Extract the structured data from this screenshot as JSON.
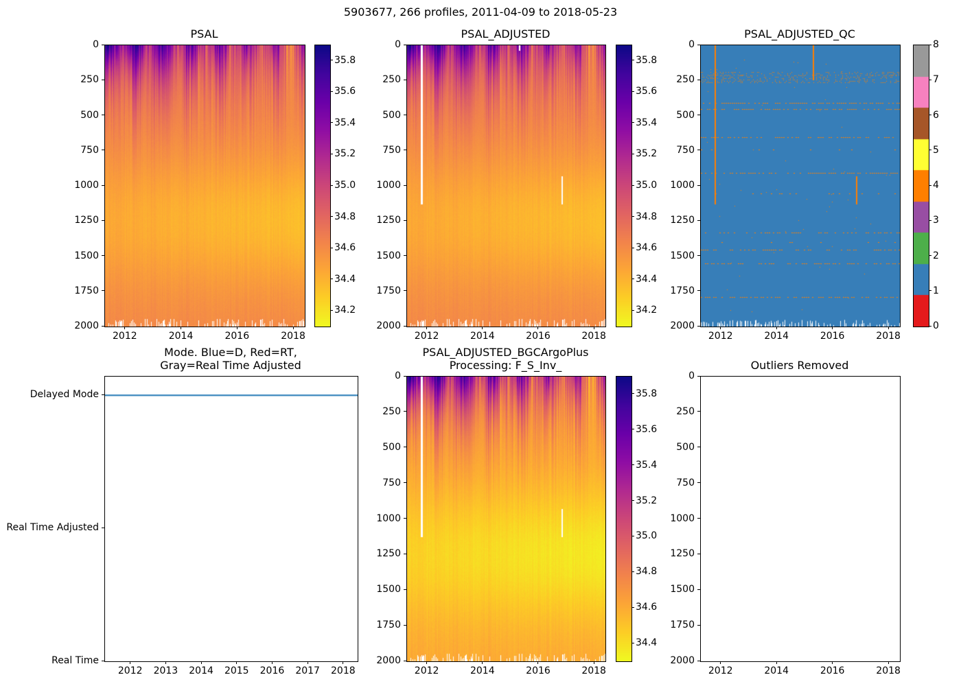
{
  "figure": {
    "title": "5903677, 266 profiles, 2011-04-09 to 2018-05-23",
    "background": "#ffffff"
  },
  "colormaps": {
    "plasma": [
      [
        0,
        "#0d0887"
      ],
      [
        0.1,
        "#41049d"
      ],
      [
        0.2,
        "#6a00a8"
      ],
      [
        0.3,
        "#8f0da4"
      ],
      [
        0.4,
        "#b12a90"
      ],
      [
        0.5,
        "#cc4778"
      ],
      [
        0.6,
        "#e16462"
      ],
      [
        0.7,
        "#f2844b"
      ],
      [
        0.8,
        "#fca636"
      ],
      [
        0.9,
        "#fcce25"
      ],
      [
        1,
        "#f0f921"
      ]
    ],
    "qc_set1": [
      "#e41a1c",
      "#377eb8",
      "#4daf4a",
      "#984ea3",
      "#ff7f00",
      "#ffff33",
      "#a65628",
      "#f781bf",
      "#999999"
    ]
  },
  "chart_data": [
    {
      "type": "heatmap",
      "title": "PSAL",
      "x": {
        "min": 2011.27,
        "max": 2018.39,
        "tick_values": [
          2012,
          2014,
          2016,
          2018
        ],
        "tick_labels": [
          "2012",
          "2014",
          "2016",
          "2018"
        ]
      },
      "y": {
        "min": 0,
        "max": 2000,
        "inverted": true,
        "tick_values": [
          0,
          250,
          500,
          750,
          1000,
          1250,
          1500,
          1750,
          2000
        ],
        "tick_labels": [
          "0",
          "250",
          "500",
          "750",
          "1000",
          "1250",
          "1500",
          "1750",
          "2000"
        ]
      },
      "colorbar": {
        "vmin": 34.1,
        "vmax": 35.9,
        "tick_values": [
          35.8,
          35.6,
          35.4,
          35.2,
          35.0,
          34.8,
          34.6,
          34.4,
          34.2
        ],
        "tick_labels": [
          "35.8",
          "35.6",
          "35.4",
          "35.2",
          "35.0",
          "34.8",
          "34.6",
          "34.4",
          "34.2"
        ]
      },
      "colormap": "plasma_r",
      "field": {
        "seed": 42,
        "years_span": 7.12,
        "deep_salinity": 34.62,
        "mid_depth": 1250,
        "mid_width": 480,
        "mid_amplitude_start": 0.17,
        "mid_amplitude_trend": 0.1,
        "surface_start": 35.55,
        "surface_trend": -0.6,
        "seasonal_amp": 0.26,
        "seasonal_phase": 0.15,
        "surface_noise": 0.5,
        "decay_min": 120,
        "decay_var": 280,
        "column_noise": 0.06,
        "pixel_noise": 0.035,
        "notch_prob": 0.3,
        "notch_max": 9,
        "gaps": []
      }
    },
    {
      "type": "heatmap",
      "title": "PSAL_ADJUSTED",
      "x": {
        "min": 2011.27,
        "max": 2018.39,
        "tick_values": [
          2012,
          2014,
          2016,
          2018
        ],
        "tick_labels": [
          "2012",
          "2014",
          "2016",
          "2018"
        ]
      },
      "y": {
        "min": 0,
        "max": 2000,
        "inverted": true,
        "tick_values": [
          0,
          250,
          500,
          750,
          1000,
          1250,
          1500,
          1750,
          2000
        ],
        "tick_labels": [
          "0",
          "250",
          "500",
          "750",
          "1000",
          "1250",
          "1500",
          "1750",
          "2000"
        ]
      },
      "colorbar": {
        "vmin": 34.1,
        "vmax": 35.9,
        "tick_values": [
          35.8,
          35.6,
          35.4,
          35.2,
          35.0,
          34.8,
          34.6,
          34.4,
          34.2
        ],
        "tick_labels": [
          "35.8",
          "35.6",
          "35.4",
          "35.2",
          "35.0",
          "34.8",
          "34.6",
          "34.4",
          "34.2"
        ]
      },
      "colormap": "plasma_r",
      "field": {
        "seed": 42,
        "years_span": 7.12,
        "deep_salinity": 34.62,
        "mid_depth": 1250,
        "mid_width": 480,
        "mid_amplitude_start": 0.17,
        "mid_amplitude_trend": 0.1,
        "surface_start": 35.55,
        "surface_trend": -0.6,
        "seasonal_amp": 0.26,
        "seasonal_phase": 0.15,
        "surface_noise": 0.5,
        "decay_min": 120,
        "decay_var": 280,
        "column_noise": 0.06,
        "pixel_noise": 0.035,
        "notch_prob": 0.3,
        "notch_max": 9,
        "gaps": [
          {
            "time": 2011.78,
            "depth_from": 0,
            "depth_to": 1130,
            "width": 3
          },
          {
            "time": 2015.3,
            "depth_from": 0,
            "depth_to": 40,
            "width": 2
          },
          {
            "time": 2016.85,
            "depth_from": 930,
            "depth_to": 1130,
            "width": 2
          }
        ]
      }
    },
    {
      "type": "qc_heatmap",
      "title": "PSAL_ADJUSTED_QC",
      "x": {
        "min": 2011.27,
        "max": 2018.39,
        "tick_values": [
          2012,
          2014,
          2016,
          2018
        ],
        "tick_labels": [
          "2012",
          "2014",
          "2016",
          "2018"
        ]
      },
      "y": {
        "min": 0,
        "max": 2000,
        "inverted": true,
        "tick_values": [
          0,
          250,
          500,
          750,
          1000,
          1250,
          1500,
          1750,
          2000
        ],
        "tick_labels": [
          "0",
          "250",
          "500",
          "750",
          "1000",
          "1250",
          "1500",
          "1750",
          "2000"
        ]
      },
      "colorbar": {
        "vmin": 0,
        "vmax": 8,
        "tick_values": [
          0,
          1,
          2,
          3,
          4,
          5,
          6,
          7,
          8
        ],
        "tick_labels": [
          "0",
          "1",
          "2",
          "3",
          "4",
          "5",
          "6",
          "7",
          "8"
        ],
        "discrete_colors": "qc_set1"
      },
      "features": {
        "seed": 7,
        "base_qc_value": 1,
        "flag_qc_value": 4,
        "base_color": "#377eb8",
        "flag_color": "#ff7f00",
        "speckle_band": {
          "depth_from": 190,
          "depth_to": 266,
          "row_step": 9,
          "prob": 0.3
        },
        "rows": [
          {
            "depth": 410,
            "density": 0.6
          },
          {
            "depth": 452,
            "density": 0.55
          },
          {
            "depth": 656,
            "density": 0.5
          },
          {
            "depth": 740,
            "density": 0.05
          },
          {
            "depth": 905,
            "density": 0.55
          },
          {
            "depth": 1052,
            "density": 0.12
          },
          {
            "depth": 1330,
            "density": 0.45
          },
          {
            "depth": 1400,
            "density": 0.12
          },
          {
            "depth": 1455,
            "density": 0.5
          },
          {
            "depth": 1553,
            "density": 0.4
          },
          {
            "depth": 1790,
            "density": 0.5
          }
        ],
        "v_lines": [
          {
            "time": 2011.78,
            "depth_from": 0,
            "depth_to": 1130
          },
          {
            "time": 2015.3,
            "depth_from": 0,
            "depth_to": 250
          },
          {
            "time": 2016.85,
            "depth_from": 930,
            "depth_to": 1130
          }
        ],
        "random_dots": {
          "count": 60,
          "depth_from": 80,
          "depth_to": 1900
        },
        "notch_prob": 0.35,
        "notch_max": 8
      }
    },
    {
      "type": "category_line",
      "title": "Mode. Blue=D, Red=RT,\nGray=Real Time Adjusted",
      "x": {
        "min": 2011.27,
        "max": 2018.39,
        "tick_values": [
          2012,
          2013,
          2014,
          2015,
          2016,
          2017,
          2018
        ],
        "tick_labels": [
          "2012",
          "2013",
          "2014",
          "2015",
          "2016",
          "2017",
          "2018"
        ]
      },
      "y": {
        "min": 0,
        "max": 2.14,
        "categories": [
          "Real Time",
          "Real Time Adjusted",
          "Delayed Mode"
        ],
        "category_values": [
          0,
          1,
          2
        ]
      },
      "series": [
        {
          "name": "mode",
          "color": "#1f77b4",
          "value": "Delayed Mode",
          "category_index": 2,
          "linewidth": 2
        }
      ]
    },
    {
      "type": "heatmap",
      "title": "PSAL_ADJUSTED_BGCArgoPlus\nProcessing: F_S_Inv_",
      "x": {
        "min": 2011.27,
        "max": 2018.39,
        "tick_values": [
          2012,
          2014,
          2016,
          2018
        ],
        "tick_labels": [
          "2012",
          "2014",
          "2016",
          "2018"
        ]
      },
      "y": {
        "min": 0,
        "max": 2000,
        "inverted": true,
        "tick_values": [
          0,
          250,
          500,
          750,
          1000,
          1250,
          1500,
          1750,
          2000
        ],
        "tick_labels": [
          "0",
          "250",
          "500",
          "750",
          "1000",
          "1250",
          "1500",
          "1750",
          "2000"
        ]
      },
      "colorbar": {
        "vmin": 34.3,
        "vmax": 35.9,
        "tick_values": [
          35.8,
          35.6,
          35.4,
          35.2,
          35.0,
          34.8,
          34.6,
          34.4
        ],
        "tick_labels": [
          "35.8",
          "35.6",
          "35.4",
          "35.2",
          "35.0",
          "34.8",
          "34.6",
          "34.4"
        ]
      },
      "colormap": "plasma_r",
      "field": {
        "seed": 42,
        "years_span": 7.12,
        "deep_salinity": 34.62,
        "mid_depth": 1250,
        "mid_width": 480,
        "mid_amplitude_start": 0.17,
        "mid_amplitude_trend": 0.1,
        "surface_start": 35.55,
        "surface_trend": -0.6,
        "seasonal_amp": 0.26,
        "seasonal_phase": 0.15,
        "surface_noise": 0.5,
        "decay_min": 120,
        "decay_var": 280,
        "column_noise": 0.06,
        "pixel_noise": 0.035,
        "notch_prob": 0.3,
        "notch_max": 9,
        "gaps": [
          {
            "time": 2011.78,
            "depth_from": 0,
            "depth_to": 1130,
            "width": 3
          },
          {
            "time": 2016.85,
            "depth_from": 930,
            "depth_to": 1130,
            "width": 2
          }
        ]
      }
    },
    {
      "type": "empty",
      "title": "Outliers Removed",
      "x": {
        "min": 2011.27,
        "max": 2018.39,
        "tick_values": [
          2012,
          2014,
          2016,
          2018
        ],
        "tick_labels": [
          "2012",
          "2014",
          "2016",
          "2018"
        ]
      },
      "y": {
        "min": 0,
        "max": 2000,
        "inverted": true,
        "tick_values": [
          0,
          250,
          500,
          750,
          1000,
          1250,
          1500,
          1750,
          2000
        ],
        "tick_labels": [
          "0",
          "250",
          "500",
          "750",
          "1000",
          "1250",
          "1500",
          "1750",
          "2000"
        ]
      }
    }
  ]
}
